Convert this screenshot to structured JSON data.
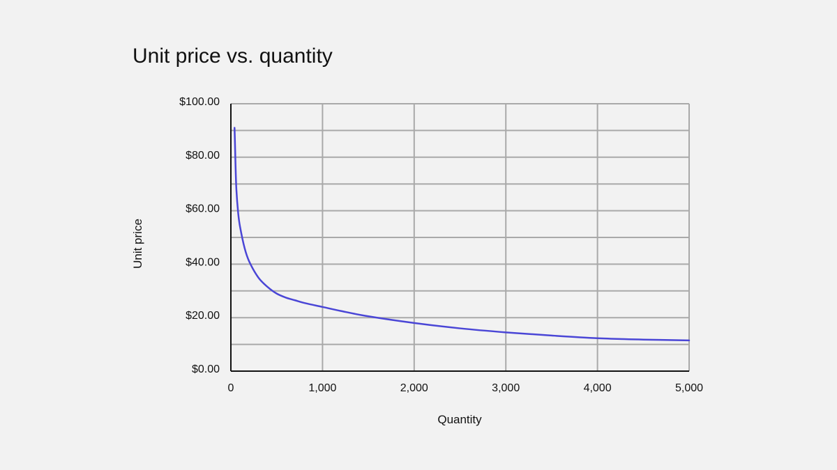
{
  "chart_data": {
    "type": "line",
    "title": "Unit price vs. quantity",
    "xlabel": "Quantity",
    "ylabel": "Unit price",
    "xlim": [
      0,
      5000
    ],
    "ylim": [
      0,
      100
    ],
    "x_ticks": [
      0,
      1000,
      2000,
      3000,
      4000,
      5000
    ],
    "x_tick_labels": [
      "0",
      "1,000",
      "2,000",
      "3,000",
      "4,000",
      "5,000"
    ],
    "y_ticks": [
      0,
      20,
      40,
      60,
      80,
      100
    ],
    "y_tick_labels": [
      "$0.00",
      "$20.00",
      "$40.00",
      "$60.00",
      "$80.00",
      "$100.00"
    ],
    "x_grid_step": 1000,
    "y_grid_step": 10,
    "grid": true,
    "legend": "none",
    "colors": {
      "line": "#4a46d6",
      "grid": "#a9a9a9",
      "axis": "#111111"
    },
    "series": [
      {
        "x": [
          40,
          45,
          50,
          60,
          80,
          100,
          150,
          200,
          300,
          400,
          500,
          600,
          700,
          800,
          1000,
          1200,
          1500,
          2000,
          2500,
          3000,
          3500,
          4000,
          4500,
          5000
        ],
        "y": [
          91,
          85,
          78,
          68,
          59,
          54,
          46,
          41,
          35,
          31.5,
          29,
          27.5,
          26.5,
          25.5,
          24,
          22.5,
          20.5,
          18,
          16,
          14.5,
          13.3,
          12.3,
          11.8,
          11.5
        ]
      }
    ]
  }
}
